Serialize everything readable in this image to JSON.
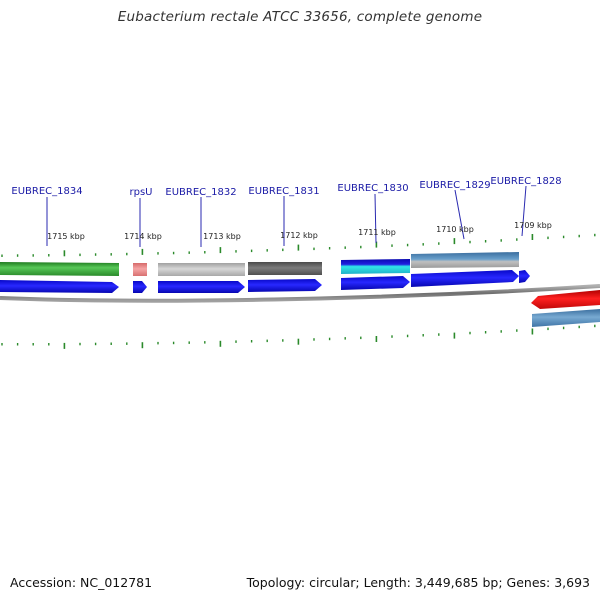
{
  "title": "Eubacterium rectale ATCC 33656, complete genome",
  "accession": "Accession: NC_012781",
  "topology": "Topology: circular; Length: 3,449,685 bp; Genes: 3,693",
  "colors": {
    "gene_arrow": "#1010ee",
    "backbone": "#8a8a8a",
    "tick": "#2b8a2b",
    "label": "#1a1aa6",
    "feature_green": "#3aa63a",
    "feature_pink": "#e88080",
    "feature_lightgray": "#bdbdbd",
    "feature_darkgray": "#666666",
    "feature_blue": "#1010cc",
    "feature_cyan": "#30e0e0",
    "feature_steel": "#4f86b8",
    "feature_red": "#e81010"
  },
  "genes": [
    {
      "name": "EUBREC_1834"
    },
    {
      "name": "rpsU"
    },
    {
      "name": "EUBREC_1832"
    },
    {
      "name": "EUBREC_1831"
    },
    {
      "name": "EUBREC_1830"
    },
    {
      "name": "EUBREC_1829"
    },
    {
      "name": "EUBREC_1828"
    }
  ],
  "positions": [
    {
      "label": "1715 kbp"
    },
    {
      "label": "1714 kbp"
    },
    {
      "label": "1713 kbp"
    },
    {
      "label": "1712 kbp"
    },
    {
      "label": "1711 kbp"
    },
    {
      "label": "1710 kbp"
    },
    {
      "label": "1709 kbp"
    }
  ]
}
